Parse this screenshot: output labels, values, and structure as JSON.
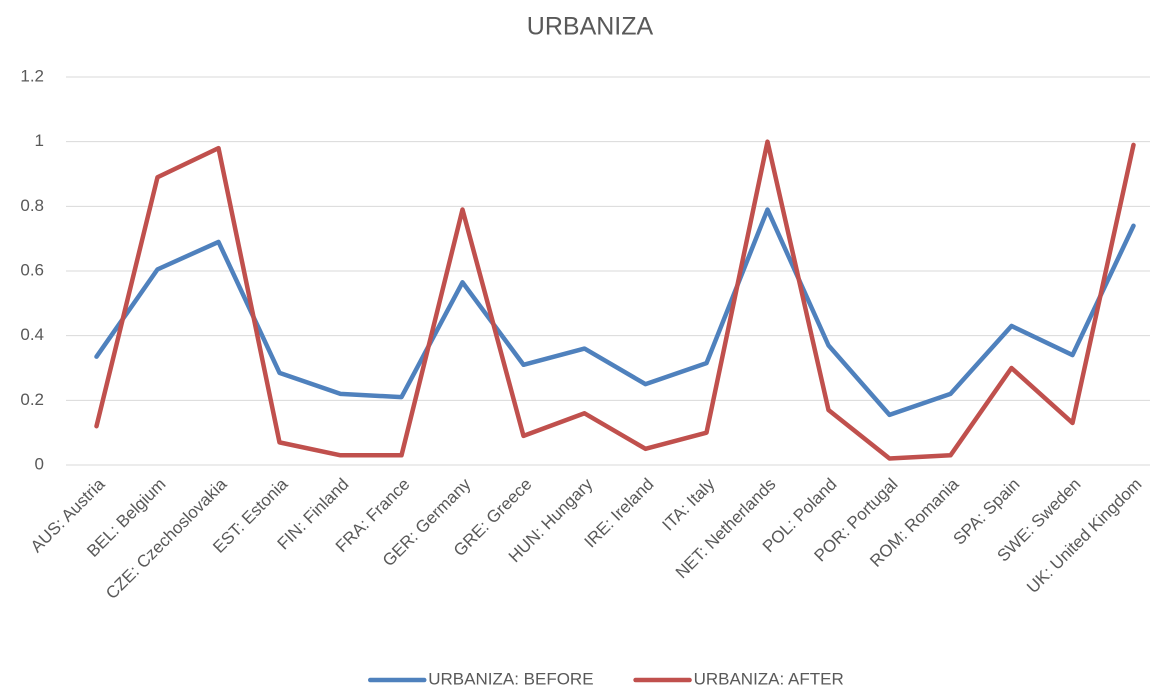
{
  "chart_data": {
    "type": "line",
    "title": "URBANIZA",
    "categories": [
      "AUS: Austria",
      "BEL: Belgium",
      "CZE: Czechoslovakia",
      "EST: Estonia",
      "FIN: Finland",
      "FRA: France",
      "GER: Germany",
      "GRE: Greece",
      "HUN: Hungary",
      "IRE: Ireland",
      "ITA: Italy",
      "NET: Netherlands",
      "POL: Poland",
      "POR: Portugal",
      "ROM: Romania",
      "SPA: Spain",
      "SWE: Sweden",
      "UK: United Kingdom"
    ],
    "series": [
      {
        "name": "URBANIZA: BEFORE",
        "color": "#4f81bd",
        "values": [
          0.335,
          0.605,
          0.69,
          0.285,
          0.22,
          0.21,
          0.565,
          0.31,
          0.36,
          0.25,
          0.315,
          0.79,
          0.37,
          0.155,
          0.22,
          0.43,
          0.34,
          0.74
        ]
      },
      {
        "name": "URBANIZA: AFTER",
        "color": "#c0504d",
        "values": [
          0.12,
          0.89,
          0.98,
          0.07,
          0.03,
          0.03,
          0.79,
          0.09,
          0.16,
          0.05,
          0.1,
          1.0,
          0.17,
          0.02,
          0.03,
          0.3,
          0.13,
          0.99
        ]
      }
    ],
    "ylim": [
      0,
      1.2
    ],
    "yticks": [
      0,
      0.2,
      0.4,
      0.6,
      0.8,
      1,
      1.2
    ],
    "grid": true,
    "legend": "bottom"
  }
}
